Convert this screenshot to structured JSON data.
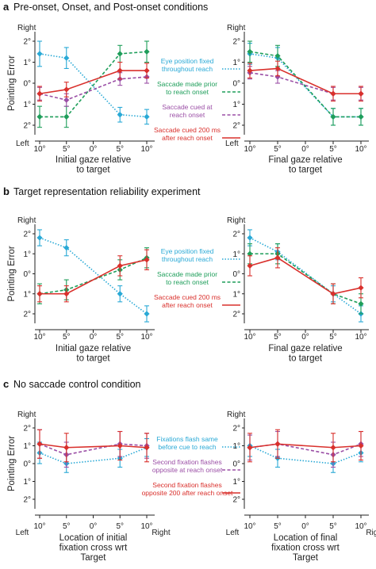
{
  "colors": {
    "blue": "#29a9d6",
    "green": "#1e9e5a",
    "purple": "#9b4fa6",
    "red": "#d9302c"
  },
  "panels": [
    {
      "letter": "a",
      "title": "Pre-onset, Onset, and Post-onset conditions",
      "ylabel": "Pointing Error",
      "y_ticks": [
        "2°",
        "1°",
        "0°",
        "1°",
        "2°"
      ],
      "y_top": "Right",
      "y_bottom": "Left",
      "x_ticks": [
        "10°",
        "5°",
        "0°",
        "5°",
        "10°"
      ],
      "x_ends": [
        "",
        ""
      ],
      "legend": [
        {
          "key": "blue",
          "lines": [
            "Eye position fixed",
            "throughout reach"
          ]
        },
        {
          "key": "green",
          "lines": [
            "Saccade made prior",
            "to reach onset"
          ]
        },
        {
          "key": "purple",
          "lines": [
            "Saccade cued at",
            "reach onset"
          ]
        },
        {
          "key": "red",
          "lines": [
            "Saccade cued 200 ms",
            "after reach onset"
          ]
        }
      ],
      "subplots": [
        {
          "xlabel": [
            "Initial gaze relative",
            "to target"
          ]
        },
        {
          "xlabel": [
            "Final gaze relative",
            "to target"
          ]
        }
      ]
    },
    {
      "letter": "b",
      "title": "Target representation reliability experiment",
      "ylabel": "Pointing Error",
      "y_ticks": [
        "2°",
        "1°",
        "0°",
        "1°",
        "2°"
      ],
      "y_top": "Right",
      "y_bottom": "",
      "x_ticks": [
        "10°",
        "5°",
        "0°",
        "5°",
        "10°"
      ],
      "x_ends": [
        "",
        ""
      ],
      "legend": [
        {
          "key": "blue",
          "lines": [
            "Eye position fixed",
            "throughout reach"
          ]
        },
        {
          "key": "green",
          "lines": [
            "Saccade made prior",
            "to reach onset"
          ]
        },
        {
          "key": "red",
          "lines": [
            "Saccade cued 200 ms",
            "after reach onset"
          ]
        }
      ],
      "subplots": [
        {
          "xlabel": [
            "Initial gaze relative",
            "to target"
          ]
        },
        {
          "xlabel": [
            "Final gaze relative",
            "to target"
          ]
        }
      ]
    },
    {
      "letter": "c",
      "title": "No saccade control condition",
      "ylabel": "Pointing Error",
      "y_ticks": [
        "2°",
        "1°",
        "0°",
        "1°",
        "2°"
      ],
      "y_top": "Right",
      "y_bottom": "",
      "x_ticks": [
        "10°",
        "5°",
        "0°",
        "5°",
        "10°"
      ],
      "x_ends": [
        "Left",
        "Right"
      ],
      "legend": [
        {
          "key": "blue",
          "lines": [
            "Fixations flash same",
            "before cue to reach"
          ]
        },
        {
          "key": "purple",
          "lines": [
            "Second fixation flashes",
            "opposite at reach onset"
          ]
        },
        {
          "key": "red",
          "lines": [
            "Second fixation flashes",
            "opposite 200 after reach onset"
          ]
        }
      ],
      "subplots": [
        {
          "xlabel": [
            "Location of initial",
            "fixation cross wrt",
            "Target"
          ]
        },
        {
          "xlabel": [
            "Location of final",
            "fixation cross wrt",
            "Target"
          ]
        }
      ]
    }
  ],
  "chart_data": [
    {
      "type": "line",
      "title": "Pre-onset, Onset, and Post-onset conditions",
      "xlabel": "Initial gaze relative to target",
      "ylabel": "Pointing Error",
      "x": [
        -10,
        -5,
        5,
        10
      ],
      "ylim": [
        -2.5,
        2.5
      ],
      "series": [
        {
          "name": "Eye position fixed throughout reach",
          "key": "blue",
          "style": "dotted",
          "values": [
            1.4,
            1.2,
            -1.5,
            -1.6
          ],
          "err": [
            0.6,
            0.5,
            0.35,
            0.35
          ]
        },
        {
          "name": "Saccade made prior to reach onset",
          "key": "green",
          "style": "dashed",
          "values": [
            -1.6,
            -1.6,
            1.4,
            1.5
          ],
          "err": [
            0.5,
            0.5,
            0.4,
            0.5
          ]
        },
        {
          "name": "Saccade cued at reach onset",
          "key": "purple",
          "style": "dashed",
          "values": [
            -0.5,
            -0.8,
            0.2,
            0.3
          ],
          "err": [
            0.3,
            0.3,
            0.3,
            0.3
          ]
        },
        {
          "name": "Saccade cued 200 ms after reach onset",
          "key": "red",
          "style": "solid",
          "values": [
            -0.5,
            -0.3,
            0.6,
            0.6
          ],
          "err": [
            0.35,
            0.35,
            0.4,
            0.35
          ]
        }
      ]
    },
    {
      "type": "line",
      "title": "Pre-onset, Onset, and Post-onset conditions",
      "xlabel": "Final gaze relative to target",
      "ylabel": "Pointing Error",
      "x": [
        -10,
        -5,
        5,
        10
      ],
      "ylim": [
        -2.5,
        2.5
      ],
      "series": [
        {
          "name": "Eye position fixed throughout reach",
          "key": "blue",
          "style": "dotted",
          "values": [
            1.4,
            1.2,
            -1.6,
            -1.6
          ],
          "err": [
            0.5,
            0.5,
            0.4,
            0.4
          ]
        },
        {
          "name": "Saccade made prior to reach onset",
          "key": "green",
          "style": "dashed",
          "values": [
            1.5,
            1.3,
            -1.6,
            -1.6
          ],
          "err": [
            0.5,
            0.5,
            0.4,
            0.4
          ]
        },
        {
          "name": "Saccade cued at reach onset",
          "key": "purple",
          "style": "dashed",
          "values": [
            0.5,
            0.3,
            -0.5,
            -0.5
          ],
          "err": [
            0.3,
            0.3,
            0.3,
            0.3
          ]
        },
        {
          "name": "Saccade cued 200 ms after reach onset",
          "key": "red",
          "style": "solid",
          "values": [
            0.6,
            0.7,
            -0.5,
            -0.5
          ],
          "err": [
            0.35,
            0.35,
            0.35,
            0.35
          ]
        }
      ]
    },
    {
      "type": "line",
      "title": "Target representation reliability experiment",
      "xlabel": "Initial gaze relative to target",
      "ylabel": "Pointing Error",
      "x": [
        -10,
        -5,
        5,
        10
      ],
      "ylim": [
        -2.5,
        2.5
      ],
      "series": [
        {
          "name": "Eye position fixed throughout reach",
          "key": "blue",
          "style": "dotted",
          "values": [
            1.8,
            1.3,
            -1.0,
            -2.0
          ],
          "err": [
            0.4,
            0.4,
            0.4,
            0.4
          ]
        },
        {
          "name": "Saccade made prior to reach onset",
          "key": "green",
          "style": "dashed",
          "values": [
            -1.0,
            -0.8,
            0.2,
            0.8
          ],
          "err": [
            0.5,
            0.5,
            0.5,
            0.5
          ]
        },
        {
          "name": "Saccade cued 200 ms after reach onset",
          "key": "red",
          "style": "solid",
          "values": [
            -1.0,
            -1.0,
            0.4,
            0.7
          ],
          "err": [
            0.4,
            0.4,
            0.5,
            0.5
          ]
        }
      ]
    },
    {
      "type": "line",
      "title": "Target representation reliability experiment",
      "xlabel": "Final gaze relative to target",
      "ylabel": "Pointing Error",
      "x": [
        -10,
        -5,
        5,
        10
      ],
      "ylim": [
        -2.5,
        2.5
      ],
      "series": [
        {
          "name": "Eye position fixed throughout reach",
          "key": "blue",
          "style": "dotted",
          "values": [
            1.8,
            1.1,
            -1.0,
            -2.0
          ],
          "err": [
            0.4,
            0.4,
            0.4,
            0.4
          ]
        },
        {
          "name": "Saccade made prior to reach onset",
          "key": "green",
          "style": "dashed",
          "values": [
            1.0,
            1.0,
            -1.0,
            -1.5
          ],
          "err": [
            0.5,
            0.5,
            0.5,
            0.5
          ]
        },
        {
          "name": "Saccade cued 200 ms after reach onset",
          "key": "red",
          "style": "solid",
          "values": [
            0.4,
            0.8,
            -1.0,
            -0.7
          ],
          "err": [
            0.5,
            0.5,
            0.5,
            0.5
          ]
        }
      ]
    },
    {
      "type": "line",
      "title": "No saccade control condition",
      "xlabel": "Location of initial fixation cross wrt Target",
      "ylabel": "Pointing Error",
      "x": [
        -10,
        -5,
        5,
        10
      ],
      "ylim": [
        -2.5,
        2.5
      ],
      "series": [
        {
          "name": "Fixations flash same before cue to reach",
          "key": "blue",
          "style": "dotted",
          "values": [
            0.6,
            0.0,
            0.3,
            0.9
          ],
          "err": [
            0.6,
            0.5,
            0.5,
            0.5
          ]
        },
        {
          "name": "Second fixation flashes opposite at reach onset",
          "key": "purple",
          "style": "dashed",
          "values": [
            1.1,
            0.5,
            1.1,
            1.0
          ],
          "err": [
            0.8,
            0.7,
            0.7,
            0.7
          ]
        },
        {
          "name": "Second fixation flashes opposite 200 after reach onset",
          "key": "red",
          "style": "solid",
          "values": [
            1.1,
            0.9,
            1.0,
            0.9
          ],
          "err": [
            0.8,
            0.8,
            0.8,
            0.8
          ]
        }
      ]
    },
    {
      "type": "line",
      "title": "No saccade control condition",
      "xlabel": "Location of final fixation cross wrt Target",
      "ylabel": "Pointing Error",
      "x": [
        -10,
        -5,
        5,
        10
      ],
      "ylim": [
        -2.5,
        2.5
      ],
      "series": [
        {
          "name": "Fixations flash same before cue to reach",
          "key": "blue",
          "style": "dotted",
          "values": [
            1.0,
            0.3,
            0.0,
            0.6
          ],
          "err": [
            0.6,
            0.5,
            0.5,
            0.5
          ]
        },
        {
          "name": "Second fixation flashes opposite at reach onset",
          "key": "purple",
          "style": "dashed",
          "values": [
            0.9,
            1.1,
            0.5,
            1.1
          ],
          "err": [
            0.7,
            0.7,
            0.7,
            0.7
          ]
        },
        {
          "name": "Second fixation flashes opposite 200 after reach onset",
          "key": "red",
          "style": "solid",
          "values": [
            0.9,
            1.1,
            0.9,
            1.0
          ],
          "err": [
            0.8,
            0.8,
            0.8,
            0.8
          ]
        }
      ]
    }
  ]
}
